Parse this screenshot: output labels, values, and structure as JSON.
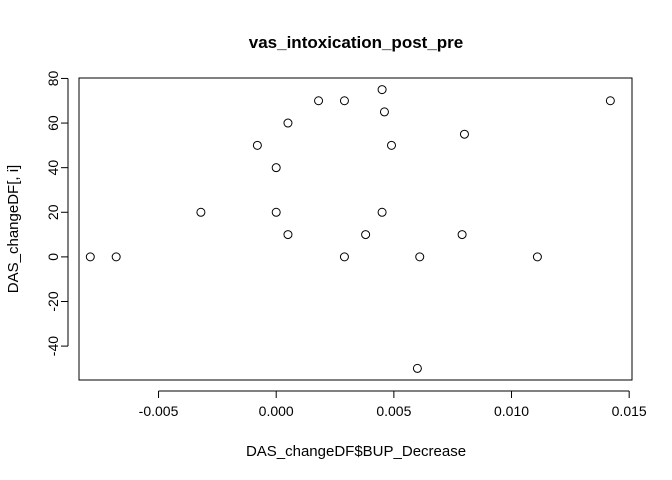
{
  "chart_data": {
    "type": "scatter",
    "title": "vas_intoxication_post_pre",
    "xlabel": "DAS_changeDF$BUP_Decrease",
    "ylabel": "DAS_changeDF[, i]",
    "xlim": [
      -0.00838,
      0.01512
    ],
    "ylim": [
      -55.2,
      80.2
    ],
    "x_ticks": [
      -0.005,
      0.0,
      0.005,
      0.01,
      0.015
    ],
    "x_tick_labels": [
      "-0.005",
      "0.000",
      "0.005",
      "0.010",
      "0.015"
    ],
    "y_ticks": [
      -40,
      -20,
      0,
      20,
      40,
      60,
      80
    ],
    "y_tick_labels": [
      "-40",
      "-20",
      "0",
      "20",
      "40",
      "60",
      "80"
    ],
    "grid": false,
    "marker": "open-circle",
    "points": [
      {
        "x": -0.0079,
        "y": 0
      },
      {
        "x": -0.0068,
        "y": 0
      },
      {
        "x": -0.0032,
        "y": 20
      },
      {
        "x": -0.0008,
        "y": 50
      },
      {
        "x": 0.0,
        "y": 40
      },
      {
        "x": 0.0,
        "y": 20
      },
      {
        "x": 0.0005,
        "y": 60
      },
      {
        "x": 0.0005,
        "y": 10
      },
      {
        "x": 0.0018,
        "y": 70
      },
      {
        "x": 0.0029,
        "y": 70
      },
      {
        "x": 0.0029,
        "y": 0
      },
      {
        "x": 0.0038,
        "y": 10
      },
      {
        "x": 0.0045,
        "y": 75
      },
      {
        "x": 0.0046,
        "y": 65
      },
      {
        "x": 0.0045,
        "y": 20
      },
      {
        "x": 0.0049,
        "y": 50
      },
      {
        "x": 0.006,
        "y": -50
      },
      {
        "x": 0.0061,
        "y": 0
      },
      {
        "x": 0.0079,
        "y": 10
      },
      {
        "x": 0.008,
        "y": 55
      },
      {
        "x": 0.0111,
        "y": 0
      },
      {
        "x": 0.0142,
        "y": 70
      }
    ]
  }
}
